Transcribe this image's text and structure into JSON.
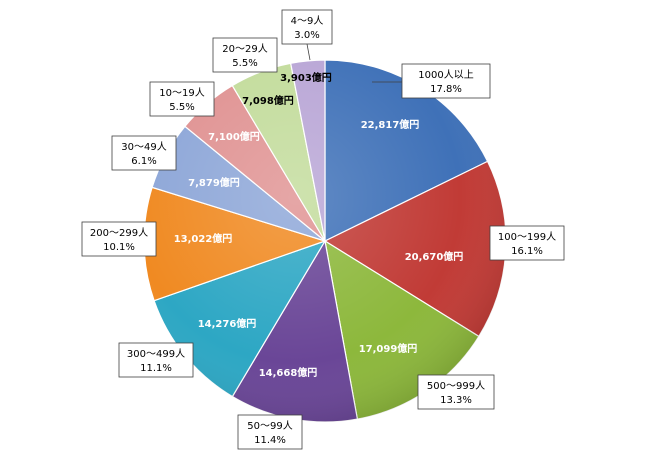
{
  "chart_data": {
    "type": "pie",
    "title": "",
    "start_angle_deg": 0,
    "direction": "clockwise",
    "value_unit": "億円",
    "slices": [
      {
        "category": "1000人以上",
        "value": 22817,
        "value_label": "22,817億円",
        "percent_label": "17.8%",
        "color": "#3f71b8"
      },
      {
        "category": "100～199人",
        "value": 20670,
        "value_label": "20,670億円",
        "percent_label": "16.1%",
        "color": "#c13b36"
      },
      {
        "category": "500～999人",
        "value": 17099,
        "value_label": "17,099億円",
        "percent_label": "13.3%",
        "color": "#8db83c"
      },
      {
        "category": "50～99人",
        "value": 14668,
        "value_label": "14,668億円",
        "percent_label": "11.4%",
        "color": "#6a4697"
      },
      {
        "category": "300～499人",
        "value": 14276,
        "value_label": "14,276億円",
        "percent_label": "11.1%",
        "color": "#2da7c4"
      },
      {
        "category": "200～299人",
        "value": 13022,
        "value_label": "13,022億円",
        "percent_label": "10.1%",
        "color": "#f08a22"
      },
      {
        "category": "30～49人",
        "value": 7879,
        "value_label": "7,879億円",
        "percent_label": "6.1%",
        "color": "#8ea7d8"
      },
      {
        "category": "10～19人",
        "value": 7100,
        "value_label": "7,100億円",
        "percent_label": "5.5%",
        "color": "#e09393"
      },
      {
        "category": "20～29人",
        "value": 7098,
        "value_label": "7,098億円",
        "percent_label": "5.5%",
        "color": "#c3dc9c"
      },
      {
        "category": "4～9人",
        "value": 3903,
        "value_label": "3,903億円",
        "percent_label": "3.0%",
        "color": "#b9a6d6"
      }
    ]
  }
}
